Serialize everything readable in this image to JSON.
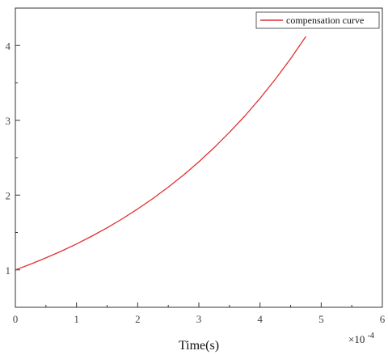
{
  "chart_data": {
    "type": "line",
    "title": "",
    "xlabel": "Time(s)",
    "ylabel": "",
    "x_multiplier": "×10",
    "x_multiplier_exponent": "-4",
    "xlim": [
      0,
      6
    ],
    "ylim": [
      0.5,
      4.5
    ],
    "x_ticks": [
      0,
      1,
      2,
      3,
      4,
      5,
      6
    ],
    "y_ticks": [
      1,
      2,
      3,
      4
    ],
    "grid": false,
    "legend": {
      "placement": "top-right",
      "entries": [
        "compensation curve"
      ]
    },
    "series": [
      {
        "name": "compensation curve",
        "color": "#e03030",
        "x": [
          0,
          0.25,
          0.5,
          0.75,
          1,
          1.25,
          1.5,
          1.75,
          2,
          2.25,
          2.5,
          2.75,
          3,
          3.25,
          3.5,
          3.75,
          4,
          4.25,
          4.5,
          4.75
        ],
        "y": [
          1.0,
          1.077,
          1.161,
          1.25,
          1.347,
          1.451,
          1.563,
          1.684,
          1.815,
          1.955,
          2.106,
          2.269,
          2.445,
          2.634,
          2.838,
          3.057,
          3.294,
          3.549,
          3.823,
          4.12
        ]
      }
    ]
  }
}
